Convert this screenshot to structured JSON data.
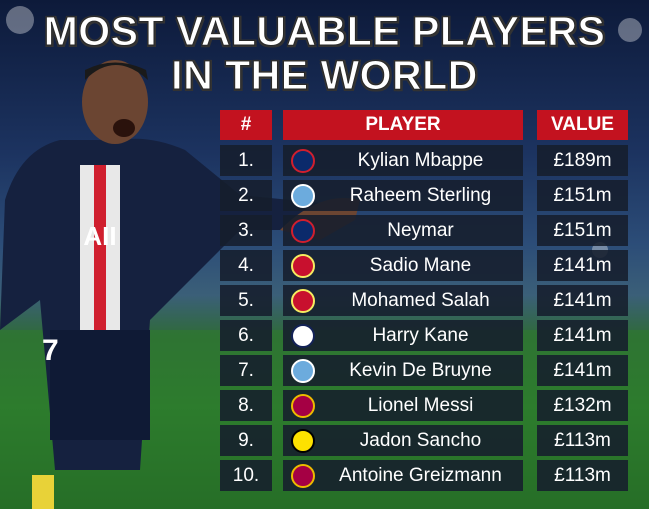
{
  "header": {
    "title": [
      "MOST VALUABLE PLAYERS",
      "IN THE WORLD"
    ]
  },
  "table": {
    "columns": [
      "#",
      "PLAYER",
      "VALUE"
    ],
    "rows": [
      [
        "1.",
        "Kylian Mbappe",
        "£189m"
      ],
      [
        "2.",
        "Raheem Sterling",
        "£151m"
      ],
      [
        "3.",
        "Neymar",
        "£151m"
      ],
      [
        "4.",
        "Sadio Mane",
        "£141m"
      ],
      [
        "5.",
        "Mohamed Salah",
        "£141m"
      ],
      [
        "6.",
        "Harry Kane",
        "£141m"
      ],
      [
        "7.",
        "Kevin De Bruyne",
        "£141m"
      ],
      [
        "8.",
        "Lionel Messi",
        "£132m"
      ],
      [
        "9.",
        "Jadon Sancho",
        "£113m"
      ],
      [
        "10.",
        "Antoine Greizmann",
        "£113m"
      ]
    ]
  }
}
